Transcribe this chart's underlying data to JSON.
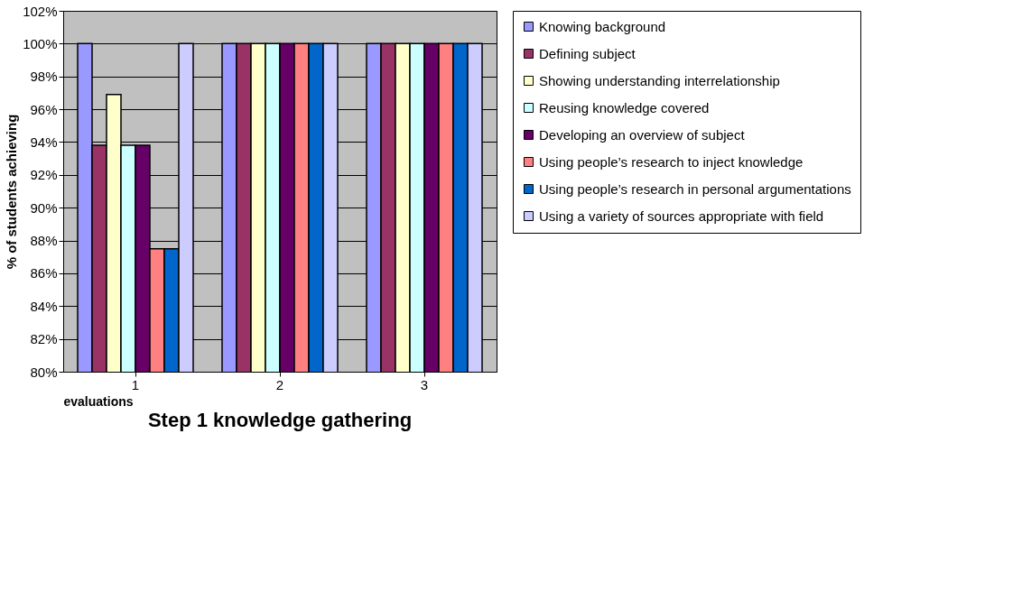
{
  "chart_data": {
    "type": "bar",
    "title": "Step 1 knowledge gathering",
    "xlabel": "evaluations",
    "ylabel": "% of students achieving",
    "categories": [
      "1",
      "2",
      "3"
    ],
    "series": [
      {
        "name": "Knowing background",
        "color": "#9999ff",
        "values": [
          100,
          100,
          100
        ]
      },
      {
        "name": "Defining subject",
        "color": "#993366",
        "values": [
          93.8,
          100,
          100
        ]
      },
      {
        "name": "Showing understanding interrelationship",
        "color": "#ffffcc",
        "values": [
          96.9,
          100,
          100
        ]
      },
      {
        "name": "Reusing knowledge covered",
        "color": "#ccffff",
        "values": [
          93.8,
          100,
          100
        ]
      },
      {
        "name": "Developing an overview of subject",
        "color": "#660066",
        "values": [
          93.8,
          100,
          100
        ]
      },
      {
        "name": "Using people’s research to inject knowledge",
        "color": "#ff8080",
        "values": [
          87.5,
          100,
          100
        ]
      },
      {
        "name": "Using people’s research in personal argumentations",
        "color": "#0066cc",
        "values": [
          87.5,
          100,
          100
        ]
      },
      {
        "name": "Using a variety of sources appropriate with field",
        "color": "#ccccff",
        "values": [
          100,
          100,
          100
        ]
      }
    ],
    "ylim": [
      80,
      102
    ],
    "yticks": [
      {
        "value": 80,
        "label": "80%"
      },
      {
        "value": 82,
        "label": "82%"
      },
      {
        "value": 84,
        "label": "84%"
      },
      {
        "value": 86,
        "label": "86%"
      },
      {
        "value": 88,
        "label": "88%"
      },
      {
        "value": 90,
        "label": "90%"
      },
      {
        "value": 92,
        "label": "92%"
      },
      {
        "value": 94,
        "label": "94%"
      },
      {
        "value": 96,
        "label": "96%"
      },
      {
        "value": 98,
        "label": "98%"
      },
      {
        "value": 100,
        "label": "100%"
      },
      {
        "value": 102,
        "label": "102%"
      }
    ],
    "grid": "y",
    "legend": "right"
  }
}
